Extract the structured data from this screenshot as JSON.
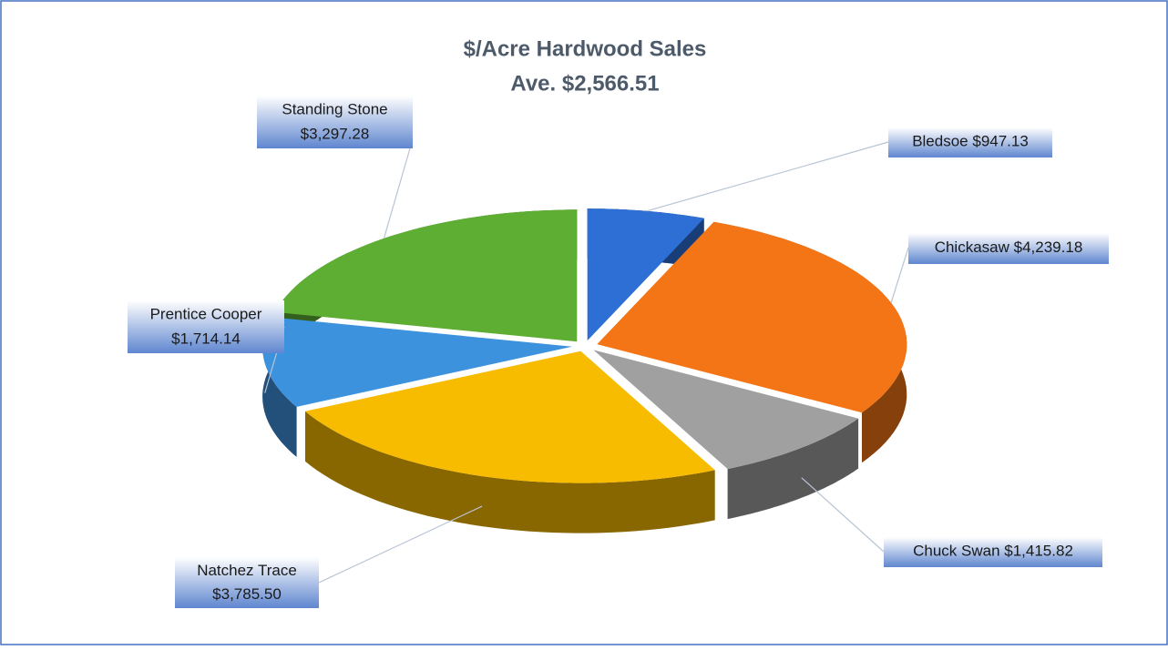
{
  "chart_data": {
    "type": "pie",
    "title": "$/Acre Hardwood Sales",
    "subtitle": "Ave. $2,566.51",
    "categories": [
      "Bledsoe",
      "Chickasaw",
      "Chuck Swan",
      "Natchez Trace",
      "Prentice Cooper",
      "Standing Stone"
    ],
    "values": [
      947.13,
      4239.18,
      1415.82,
      3785.5,
      1714.14,
      3297.28
    ],
    "value_labels": [
      "$947.13",
      "$4,239.18",
      "$1,415.82",
      "$3,785.50",
      "$1,714.14",
      "$3,297.28"
    ],
    "colors": [
      "#2e6fd6",
      "#f47516",
      "#a0a0a0",
      "#f7bb00",
      "#3d92de",
      "#5eae34"
    ]
  }
}
